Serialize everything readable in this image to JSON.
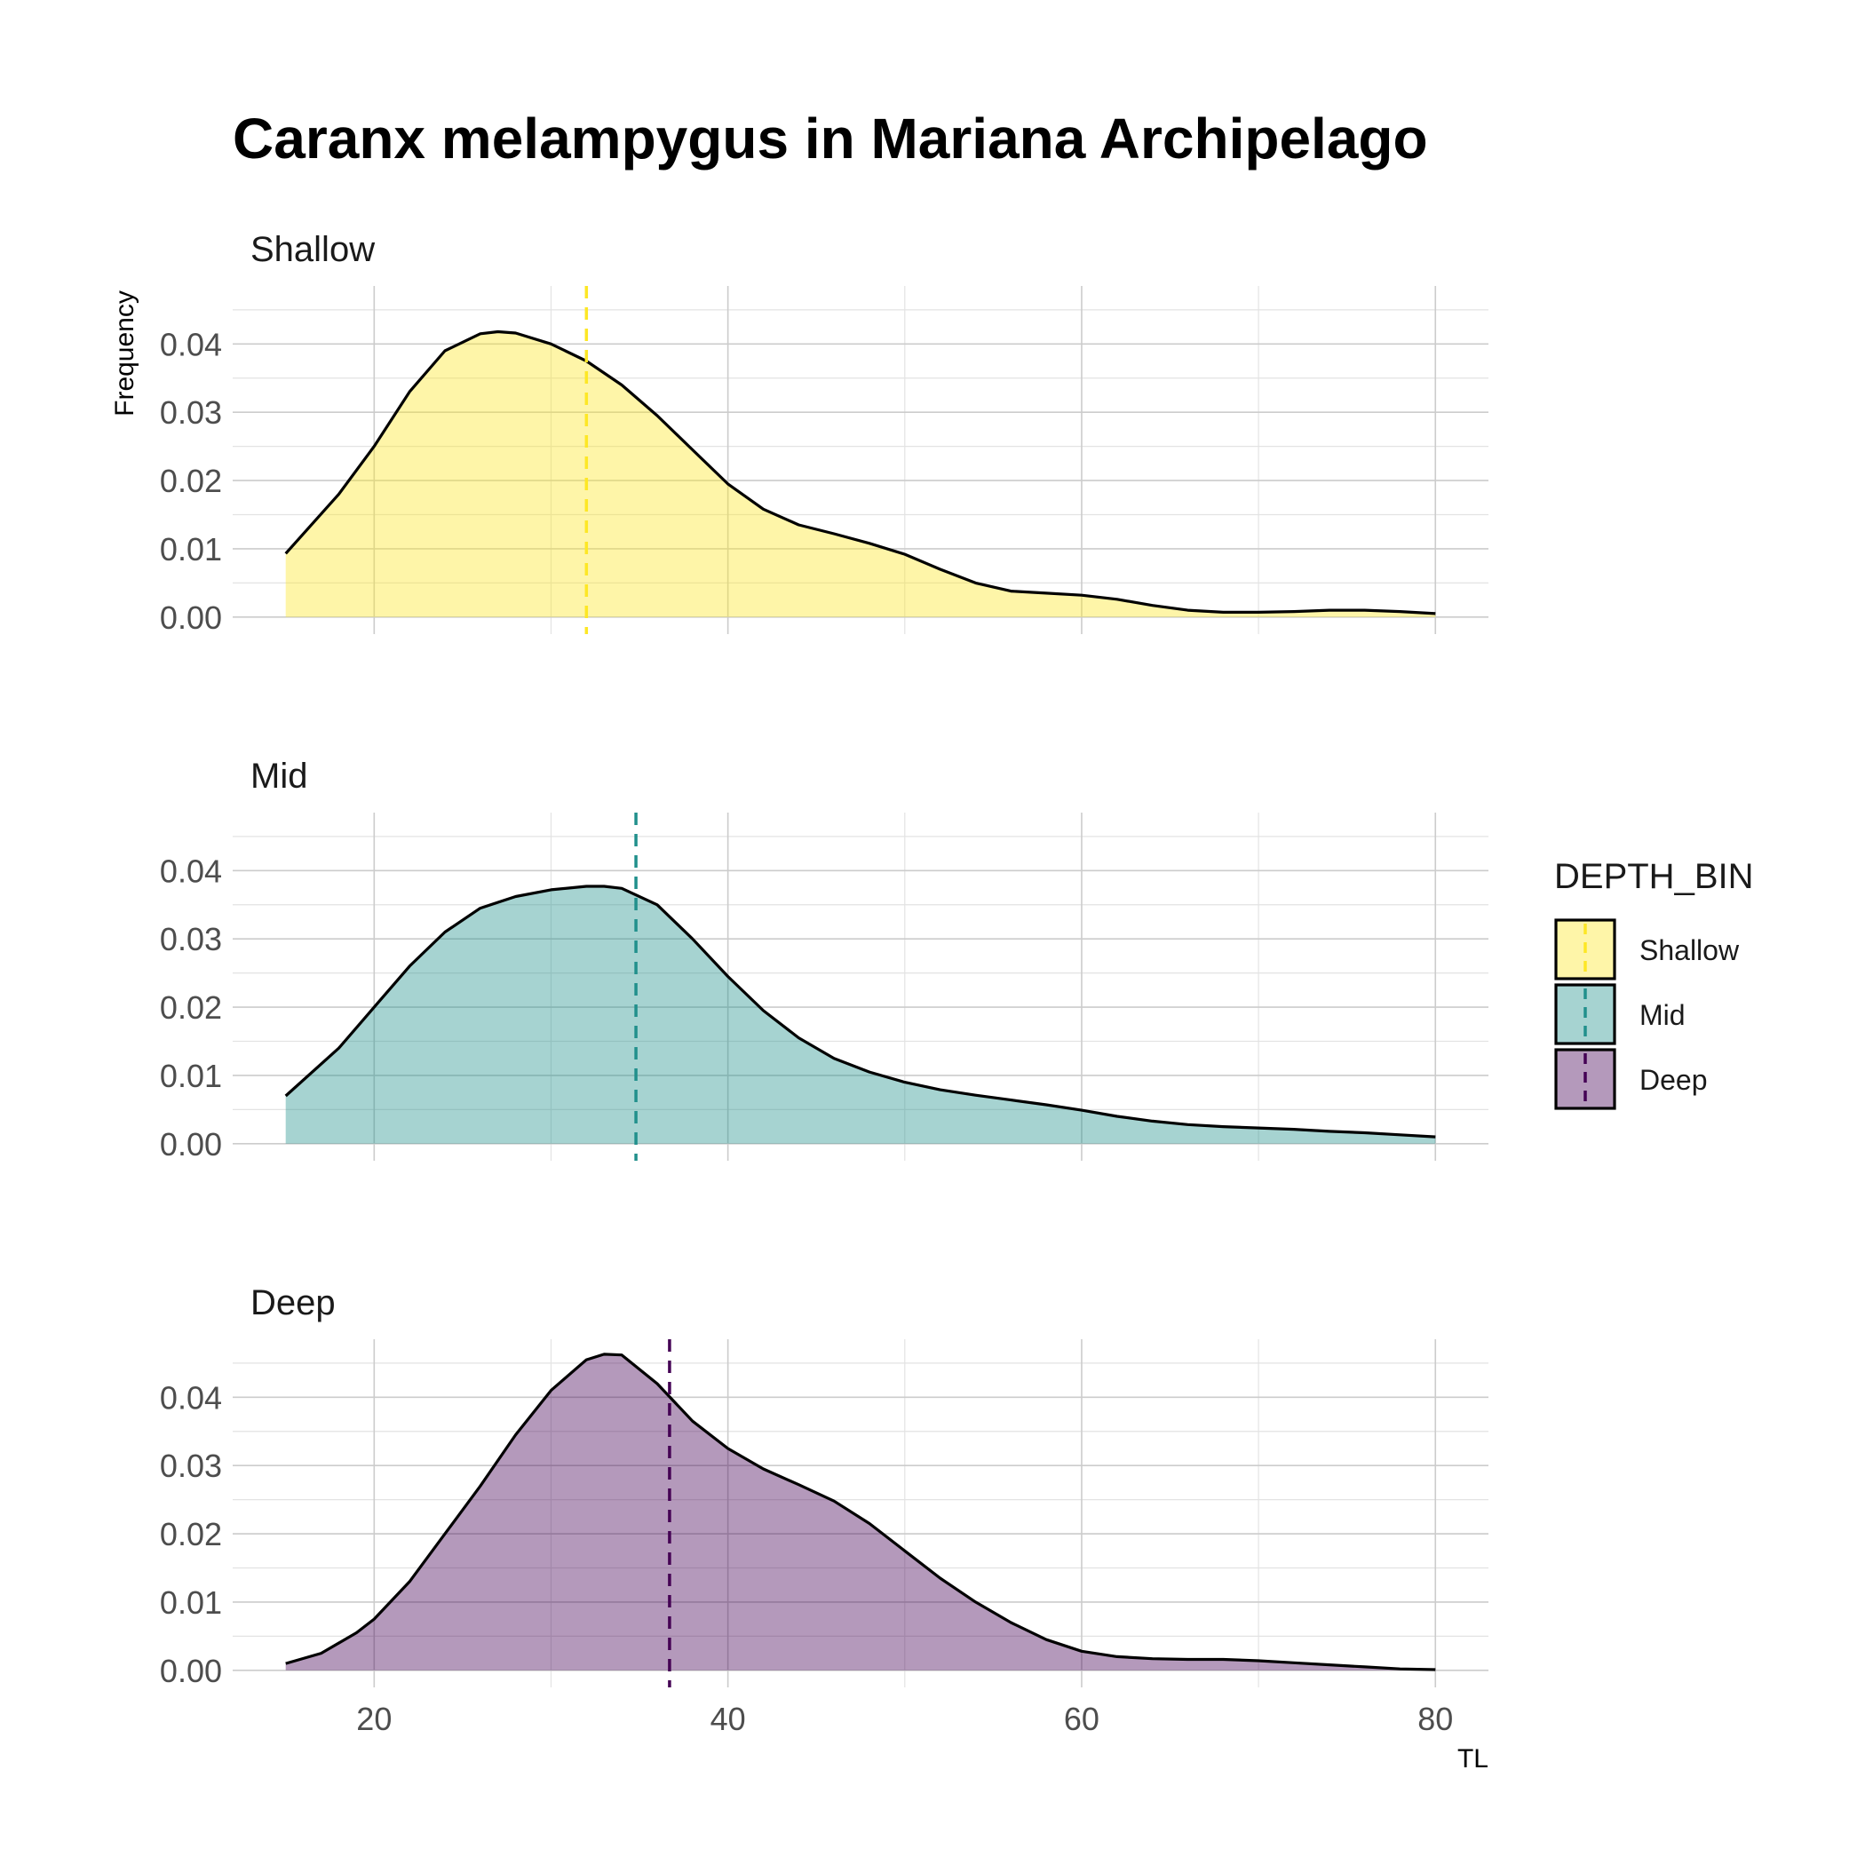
{
  "chart_data": {
    "type": "area",
    "title": "Caranx melampygus in Mariana Archipelago",
    "xlabel": "TL",
    "ylabel": "Frequency",
    "xlim": [
      12,
      83
    ],
    "ylim": [
      -0.0025,
      0.0485
    ],
    "x_ticks": [
      20,
      40,
      60,
      80
    ],
    "x_tick_labels": [
      "20",
      "40",
      "60",
      "80"
    ],
    "y_ticks": [
      0.0,
      0.01,
      0.02,
      0.03,
      0.04
    ],
    "y_tick_labels": [
      "0.00",
      "0.01",
      "0.02",
      "0.03",
      "0.04"
    ],
    "grid": true,
    "facet_direction": "vertical",
    "legend": {
      "title": "DEPTH_BIN",
      "position": "right",
      "entries": [
        "Shallow",
        "Mid",
        "Deep"
      ]
    },
    "series": [
      {
        "name": "Shallow",
        "fill": "#FDE725",
        "mean_line": 32,
        "x": [
          15,
          18,
          20,
          22,
          24,
          26,
          27,
          28,
          30,
          32,
          34,
          36,
          38,
          40,
          42,
          44,
          46,
          48,
          50,
          52,
          54,
          56,
          58,
          60,
          62,
          64,
          66,
          68,
          70,
          72,
          74,
          76,
          78,
          80
        ],
        "values": [
          0.0093,
          0.018,
          0.025,
          0.033,
          0.039,
          0.0415,
          0.0418,
          0.0416,
          0.04,
          0.0375,
          0.034,
          0.0295,
          0.0245,
          0.0195,
          0.0158,
          0.0135,
          0.0122,
          0.0108,
          0.0092,
          0.007,
          0.005,
          0.0038,
          0.0035,
          0.0032,
          0.0026,
          0.0017,
          0.001,
          0.0007,
          0.0007,
          0.0008,
          0.001,
          0.001,
          0.0008,
          0.0005
        ]
      },
      {
        "name": "Mid",
        "fill": "#21908C",
        "mean_line": 34.8,
        "x": [
          15,
          18,
          20,
          22,
          24,
          26,
          28,
          30,
          32,
          33,
          34,
          36,
          38,
          40,
          42,
          44,
          46,
          48,
          50,
          52,
          54,
          56,
          58,
          60,
          62,
          64,
          66,
          68,
          70,
          72,
          74,
          76,
          78,
          80
        ],
        "values": [
          0.007,
          0.014,
          0.02,
          0.026,
          0.031,
          0.0345,
          0.0362,
          0.0372,
          0.0377,
          0.0377,
          0.0374,
          0.035,
          0.03,
          0.0245,
          0.0195,
          0.0155,
          0.0125,
          0.0105,
          0.009,
          0.0079,
          0.0071,
          0.0064,
          0.0057,
          0.0049,
          0.004,
          0.0033,
          0.0028,
          0.0025,
          0.0023,
          0.0021,
          0.0018,
          0.0016,
          0.0013,
          0.001
        ]
      },
      {
        "name": "Deep",
        "fill": "#440154",
        "mean_line": 36.7,
        "x": [
          15,
          17,
          19,
          20,
          22,
          24,
          26,
          28,
          30,
          32,
          33,
          34,
          36,
          38,
          40,
          42,
          44,
          46,
          48,
          50,
          52,
          54,
          56,
          58,
          60,
          62,
          64,
          66,
          68,
          70,
          72,
          74,
          76,
          78,
          80
        ],
        "values": [
          0.001,
          0.0025,
          0.0055,
          0.0075,
          0.013,
          0.02,
          0.027,
          0.0345,
          0.041,
          0.0455,
          0.0463,
          0.0462,
          0.042,
          0.0365,
          0.0325,
          0.0295,
          0.0272,
          0.0248,
          0.0215,
          0.0175,
          0.0135,
          0.01,
          0.007,
          0.0045,
          0.0028,
          0.002,
          0.0017,
          0.0016,
          0.0016,
          0.0014,
          0.0011,
          0.0008,
          0.0005,
          0.0002,
          0.0001
        ]
      }
    ]
  }
}
